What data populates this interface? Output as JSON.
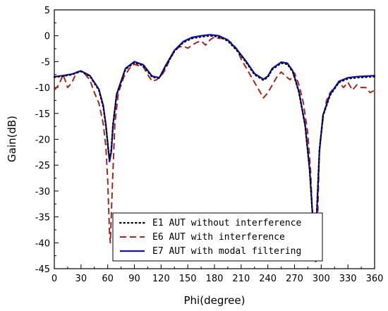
{
  "chart_data": {
    "type": "line",
    "xlabel": "Phi(degree)",
    "ylabel": "Gain(dB)",
    "xlim": [
      0,
      360
    ],
    "ylim": [
      -45,
      5
    ],
    "xticks": [
      0,
      30,
      60,
      90,
      120,
      150,
      180,
      210,
      240,
      270,
      300,
      330,
      360
    ],
    "yticks": [
      5,
      0,
      -5,
      -10,
      -15,
      -20,
      -25,
      -30,
      -35,
      -40,
      -45
    ],
    "grid": false,
    "legend_position": "bottom-right",
    "series": [
      {
        "name": "E1 AUT without interference",
        "color": "#000000",
        "style": "dotted",
        "x": [
          0,
          10,
          20,
          30,
          40,
          50,
          55,
          58,
          60,
          62,
          64,
          66,
          70,
          80,
          90,
          100,
          110,
          118,
          125,
          135,
          145,
          155,
          165,
          175,
          185,
          195,
          205,
          215,
          225,
          235,
          240,
          245,
          255,
          262,
          268,
          275,
          282,
          287,
          290,
          293,
          295,
          298,
          302,
          310,
          320,
          330,
          340,
          350,
          360
        ],
        "y": [
          -8.0,
          -7.8,
          -7.5,
          -6.9,
          -7.8,
          -10.5,
          -13.8,
          -17.5,
          -21.0,
          -23.8,
          -22.0,
          -17.0,
          -11.5,
          -6.5,
          -5.2,
          -5.8,
          -8.0,
          -8.2,
          -6.0,
          -3.0,
          -1.3,
          -0.5,
          -0.2,
          0.0,
          -0.2,
          -1.0,
          -2.8,
          -5.0,
          -7.5,
          -8.6,
          -8.0,
          -6.5,
          -5.3,
          -5.5,
          -7.0,
          -11.0,
          -17.5,
          -26.0,
          -34.0,
          -40.0,
          -34.0,
          -22.0,
          -15.5,
          -11.5,
          -9.0,
          -8.3,
          -8.1,
          -8.0,
          -7.9
        ]
      },
      {
        "name": "E6 AUT with interference",
        "color": "#a0281e",
        "style": "dashed",
        "x": [
          0,
          5,
          10,
          15,
          20,
          25,
          30,
          35,
          40,
          45,
          50,
          55,
          58,
          60,
          62,
          63,
          65,
          68,
          72,
          78,
          85,
          90,
          95,
          100,
          105,
          110,
          115,
          120,
          125,
          130,
          135,
          140,
          145,
          150,
          155,
          160,
          165,
          170,
          175,
          180,
          185,
          190,
          195,
          200,
          205,
          210,
          215,
          220,
          225,
          230,
          235,
          240,
          245,
          250,
          255,
          260,
          265,
          270,
          275,
          280,
          285,
          288,
          290,
          292,
          294,
          296,
          298,
          302,
          306,
          310,
          315,
          320,
          325,
          330,
          335,
          340,
          345,
          350,
          355,
          360
        ],
        "y": [
          -10.5,
          -9.5,
          -7.5,
          -10.0,
          -9.0,
          -7.0,
          -6.8,
          -7.5,
          -8.5,
          -11.0,
          -13.0,
          -17.0,
          -21.5,
          -28.0,
          -38.0,
          -40.0,
          -30.0,
          -17.0,
          -11.0,
          -8.0,
          -6.2,
          -5.5,
          -5.8,
          -6.0,
          -7.5,
          -8.8,
          -8.5,
          -7.8,
          -6.5,
          -4.5,
          -3.0,
          -2.2,
          -2.0,
          -2.4,
          -1.8,
          -1.3,
          -1.0,
          -1.8,
          -0.8,
          -0.2,
          -0.5,
          -0.5,
          -0.8,
          -1.5,
          -2.5,
          -4.5,
          -6.0,
          -7.5,
          -9.0,
          -10.5,
          -12.0,
          -11.0,
          -9.5,
          -8.0,
          -7.0,
          -7.8,
          -8.5,
          -7.2,
          -9.5,
          -13.0,
          -19.0,
          -26.0,
          -34.0,
          -41.0,
          -44.0,
          -35.0,
          -22.0,
          -16.0,
          -12.5,
          -11.0,
          -10.0,
          -9.0,
          -10.0,
          -9.0,
          -10.5,
          -9.5,
          -10.0,
          -10.0,
          -11.0,
          -10.5
        ]
      },
      {
        "name": "E7 AUT with modal filtering",
        "color": "#1010c8",
        "style": "solid",
        "x": [
          0,
          10,
          20,
          30,
          40,
          50,
          55,
          58,
          60,
          62,
          64,
          66,
          70,
          80,
          90,
          100,
          110,
          118,
          125,
          135,
          145,
          155,
          165,
          175,
          185,
          195,
          205,
          215,
          225,
          235,
          240,
          245,
          255,
          262,
          268,
          275,
          282,
          287,
          290,
          293,
          295,
          298,
          302,
          310,
          320,
          330,
          340,
          350,
          360
        ],
        "y": [
          -7.9,
          -7.7,
          -7.4,
          -6.8,
          -7.7,
          -10.3,
          -13.5,
          -17.2,
          -20.8,
          -24.3,
          -22.5,
          -17.3,
          -11.3,
          -6.3,
          -5.0,
          -5.6,
          -7.8,
          -8.1,
          -5.8,
          -2.8,
          -1.1,
          -0.3,
          0.0,
          0.2,
          0.0,
          -0.8,
          -2.6,
          -4.8,
          -7.3,
          -8.4,
          -7.8,
          -6.3,
          -5.1,
          -5.3,
          -6.8,
          -10.8,
          -17.3,
          -25.8,
          -33.8,
          -40.5,
          -34.5,
          -22.3,
          -15.3,
          -11.3,
          -8.8,
          -8.1,
          -7.9,
          -7.8,
          -7.7
        ]
      }
    ]
  }
}
